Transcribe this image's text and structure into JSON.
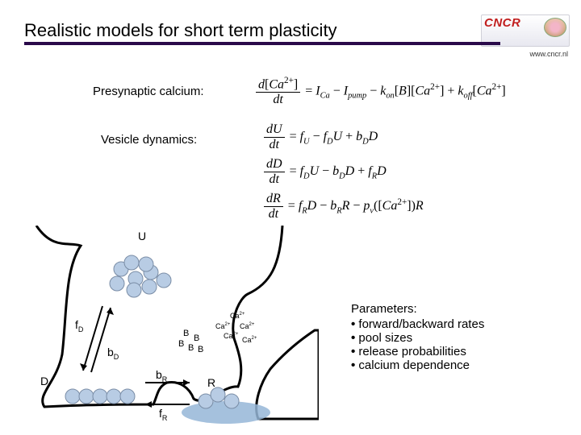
{
  "title": "Realistic models for short term plasticity",
  "logo": {
    "text": "CNCR",
    "url": "www.cncr.nl"
  },
  "labels": {
    "presyn": "Presynaptic calcium:",
    "vesdyn": "Vesicle dynamics:"
  },
  "pool_labels": {
    "U": "U",
    "D": "D",
    "R": "R"
  },
  "rate_labels": {
    "fD": "f",
    "fD_sub": "D",
    "bD": "b",
    "bD_sub": "D",
    "bR": "b",
    "bR_sub": "R",
    "fR": "f",
    "fR_sub": "R"
  },
  "B_label": "B",
  "Ca_label": "Ca",
  "Ca_sup": "2+",
  "params": {
    "heading": "Parameters:",
    "items": [
      "forward/backward rates",
      "pool sizes",
      "release probabilities",
      "calcium dependence"
    ]
  },
  "styling": {
    "title_fontsize": 22,
    "label_fontsize": 15,
    "eq_fontsize": 16,
    "rule_color": "#2a0a4a",
    "membrane_stroke": "#000000",
    "membrane_width": 3,
    "vesicle_fill": "#b8cce4",
    "vesicle_stroke": "#7a8da6",
    "vesicle_radius": 9,
    "cleft_fill": "#95b6d7",
    "background": "#ffffff",
    "logo_red": "#c11e1e",
    "U_pool": [
      [
        115,
        54
      ],
      [
        133,
        66
      ],
      [
        152,
        58
      ],
      [
        128,
        46
      ],
      [
        146,
        48
      ],
      [
        110,
        72
      ],
      [
        131,
        80
      ],
      [
        150,
        76
      ],
      [
        168,
        68
      ]
    ],
    "D_pool": [
      [
        55,
        212
      ],
      [
        72,
        212
      ],
      [
        89,
        212
      ],
      [
        106,
        212
      ],
      [
        123,
        212
      ]
    ],
    "R_pool": [
      [
        220,
        218
      ],
      [
        235,
        210
      ],
      [
        252,
        218
      ]
    ],
    "B_pool": [
      [
        192,
        137
      ],
      [
        205,
        143
      ],
      [
        186,
        150
      ],
      [
        198,
        155
      ],
      [
        210,
        157
      ]
    ],
    "Ca_pos": [
      [
        250,
        115
      ],
      [
        232,
        128
      ],
      [
        262,
        128
      ],
      [
        242,
        140
      ],
      [
        265,
        145
      ]
    ]
  }
}
